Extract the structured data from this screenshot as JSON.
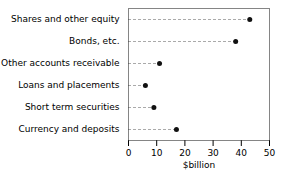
{
  "chart_data": {
    "type": "lollipop",
    "orientation": "horizontal",
    "categories": [
      "Currency and deposits",
      "Short term securities",
      "Loans and placements",
      "Other accounts receivable",
      "Bonds, etc.",
      "Shares and other equity"
    ],
    "values": [
      17,
      9,
      6,
      11,
      38,
      43
    ],
    "color": "#111111",
    "line_style": "dashed",
    "xlabel": "$billion",
    "xlim": [
      0,
      50
    ],
    "xticks": [
      0,
      10,
      20,
      30,
      40,
      50
    ],
    "grid": false
  }
}
